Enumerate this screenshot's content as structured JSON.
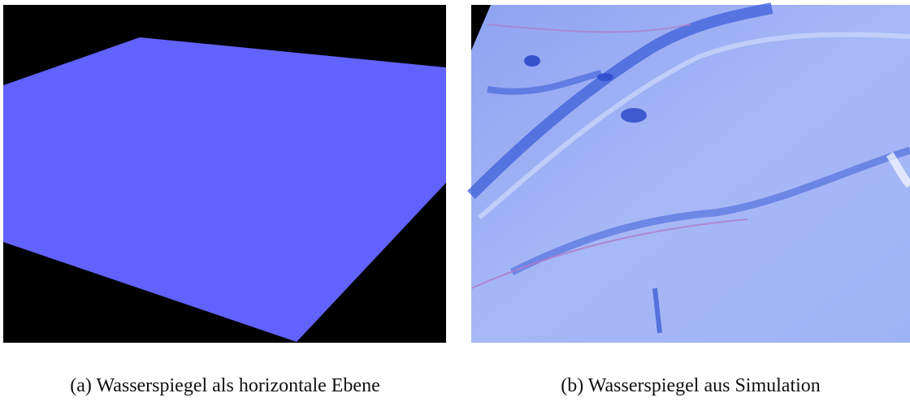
{
  "figures": [
    {
      "label": "(a)",
      "caption": "Wasserspiegel als horizontale Ebene"
    },
    {
      "label": "(b)",
      "caption": "Wasserspiegel aus Simulation"
    }
  ]
}
